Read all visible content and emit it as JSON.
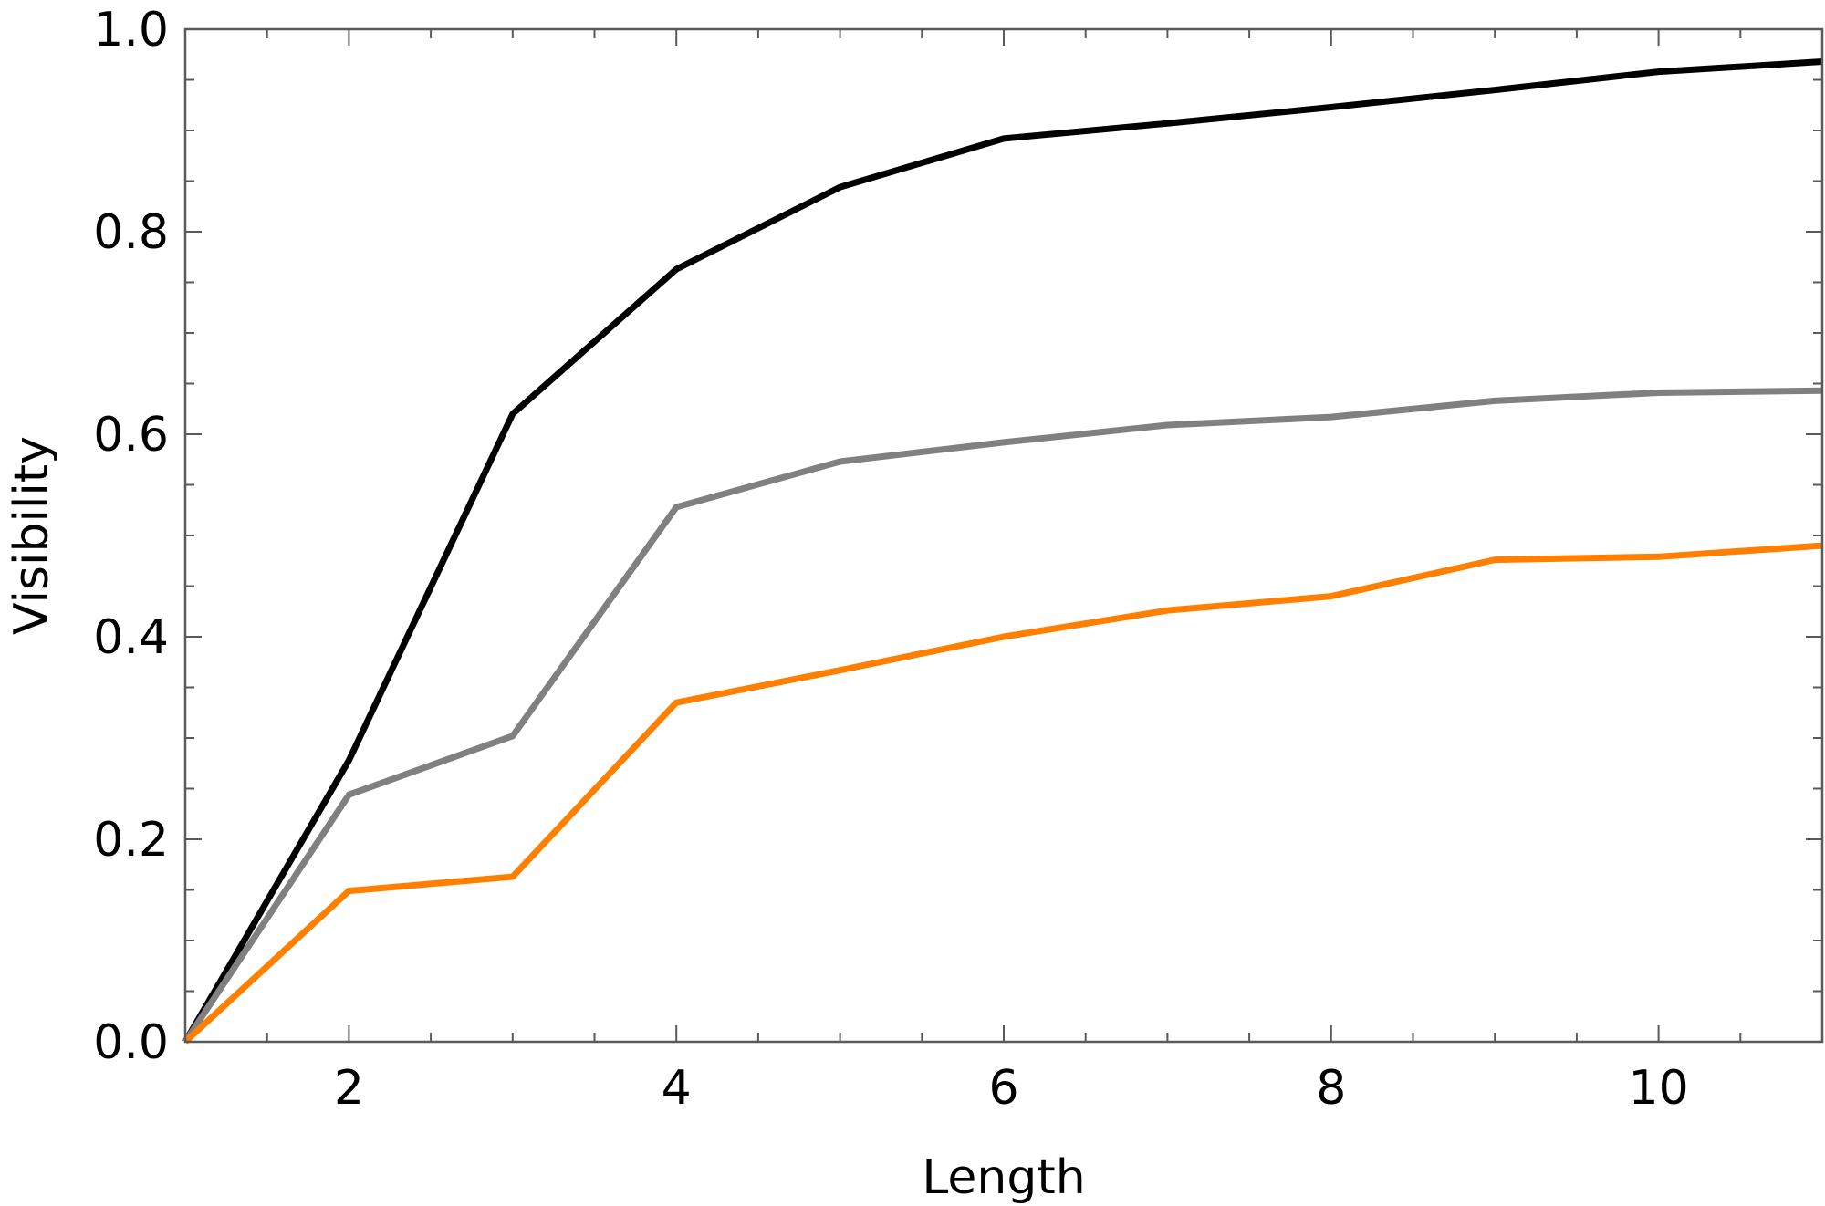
{
  "chart_data": {
    "type": "line",
    "title": "",
    "xlabel": "Length",
    "ylabel": "Visibility",
    "xlim": [
      1,
      11
    ],
    "ylim": [
      0,
      1
    ],
    "x_ticks": [
      2,
      4,
      6,
      8,
      10
    ],
    "x_tick_labels": [
      "2",
      "4",
      "6",
      "8",
      "10"
    ],
    "x_minor_step": 0.5,
    "y_ticks": [
      0,
      0.2,
      0.4,
      0.6,
      0.8,
      1.0
    ],
    "y_tick_labels": [
      "0.0",
      "0.2",
      "0.4",
      "0.6",
      "0.8",
      "1.0"
    ],
    "y_minor_step": 0.05,
    "grid": false,
    "legend": "none",
    "x": [
      1,
      2,
      3,
      4,
      5,
      6,
      7,
      8,
      9,
      10,
      11
    ],
    "series": [
      {
        "color": "#000000",
        "values": [
          0.0,
          0.278,
          0.62,
          0.763,
          0.844,
          0.892,
          0.907,
          0.923,
          0.94,
          0.958,
          0.968
        ]
      },
      {
        "color": "#808080",
        "values": [
          0.0,
          0.244,
          0.302,
          0.528,
          0.573,
          0.592,
          0.609,
          0.617,
          0.633,
          0.641,
          0.643
        ]
      },
      {
        "color": "#ff8000",
        "values": [
          0.0,
          0.149,
          0.163,
          0.335,
          0.367,
          0.4,
          0.426,
          0.44,
          0.476,
          0.479,
          0.49
        ]
      }
    ]
  }
}
